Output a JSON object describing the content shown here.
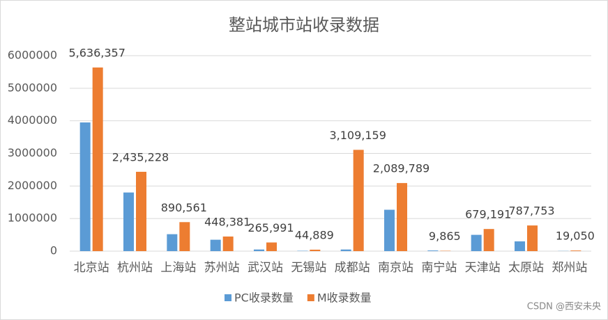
{
  "chart_data": {
    "type": "bar",
    "title": "整站城市站收录数据",
    "categories": [
      "北京站",
      "杭州站",
      "上海站",
      "苏州站",
      "武汉站",
      "无锡站",
      "成都站",
      "南京站",
      "南宁站",
      "天津站",
      "太原站",
      "郑州站"
    ],
    "series": [
      {
        "name": "PC收录数量",
        "color": "#5b9bd5",
        "values": [
          3950000,
          1800000,
          520000,
          350000,
          50000,
          10000,
          50000,
          1270000,
          20000,
          500000,
          300000,
          5000
        ]
      },
      {
        "name": "M收录数量",
        "color": "#ed7d31",
        "values": [
          5636357,
          2435228,
          890561,
          448381,
          265991,
          44889,
          3109159,
          2089789,
          9865,
          679191,
          787753,
          19050
        ],
        "value_labels": [
          "5,636,357",
          "2,435,228",
          "890,561",
          "448,381",
          "265,991",
          "44,889",
          "3,109,159",
          "2,089,789",
          "9,865",
          "679,191",
          "787,753",
          "19,050"
        ]
      }
    ],
    "ylim": [
      0,
      6000000
    ],
    "yticks": [
      0,
      1000000,
      2000000,
      3000000,
      4000000,
      5000000,
      6000000
    ],
    "grid": true,
    "legend": "bottom"
  },
  "watermark": "CSDN @西安未央"
}
